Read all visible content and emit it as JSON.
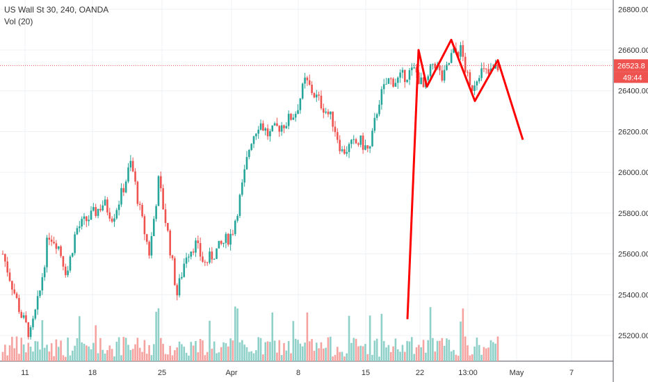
{
  "legend": {
    "symbol_line": "US Wall St 30, 240, OANDA",
    "volume_line": "Vol (20)"
  },
  "price_tag": {
    "value": "26523.8",
    "countdown": "49:44"
  },
  "colors": {
    "up": "#26a69a",
    "down": "#ef5350",
    "volume_up": "#8fd1c9",
    "volume_down": "#f5a3a0",
    "drawing": "#ff0000",
    "tag": "#ef5350",
    "grid": "#eef1f4",
    "axis_text": "#333333"
  },
  "chart_data": {
    "type": "candlestick",
    "title": "US Wall St 30, 240, OANDA",
    "indicator": "Vol (20)",
    "y_axis": {
      "ticks": [
        25200,
        25400,
        25600,
        25800,
        26000,
        26200,
        26400,
        26600,
        26800
      ],
      "range": [
        25080,
        26900
      ],
      "side": "right"
    },
    "x_axis": {
      "tick_labels": [
        "11",
        "18",
        "25",
        "Apr",
        "8",
        "15",
        "22",
        "13:00",
        "May",
        "7"
      ]
    },
    "current_price": 26523.8,
    "grid": true,
    "close_path": [
      25600,
      25450,
      25300,
      25200,
      25400,
      25700,
      25650,
      25500,
      25720,
      25760,
      25800,
      25850,
      25780,
      25900,
      26050,
      25800,
      25600,
      25960,
      25700,
      25400,
      25600,
      25650,
      25550,
      25600,
      25650,
      25700,
      25900,
      26150,
      26250,
      26180,
      26220,
      26250,
      26300,
      26450,
      26380,
      26320,
      26250,
      26100,
      26130,
      26150,
      26100,
      26350,
      26450,
      26450,
      26480,
      26500,
      26400,
      26550,
      26450,
      26580,
      26600,
      26400,
      26500,
      26480,
      26520
    ],
    "pattern_drawing": {
      "points": [
        [
          25280,
          0
        ],
        [
          26600,
          1
        ],
        [
          26420,
          2
        ],
        [
          26650,
          3
        ],
        [
          26350,
          4
        ],
        [
          26550,
          5
        ],
        [
          26160,
          6
        ]
      ]
    }
  }
}
